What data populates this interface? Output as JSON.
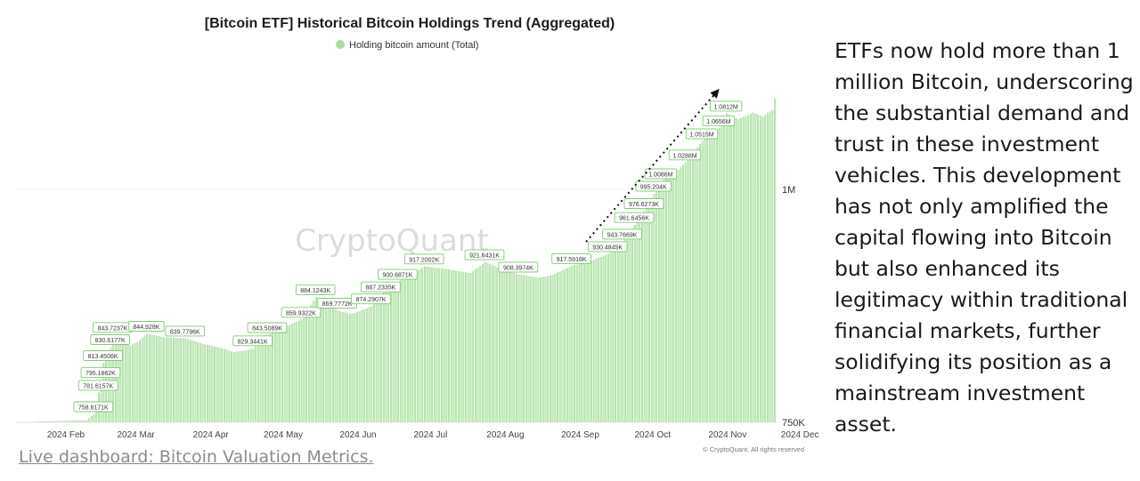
{
  "page": {
    "commentary": "ETFs now hold more than 1 million Bitcoin, underscoring the substantial demand and trust in these investment vehicles. This development has not only amplified the capital flowing into Bitcoin but also enhanced its legitimacy within traditional financial markets, further solidifying its position as a mainstream investment asset.",
    "link_text": "Live dashboard: Bitcoin Valuation Metrics."
  },
  "chart_data": {
    "type": "bar",
    "title": "[Bitcoin ETF] Historical Bitcoin Holdings Trend (Aggregated)",
    "legend": {
      "label": "Holding bitcoin amount (Total)",
      "position": "top-center",
      "color": "#a8dd9e"
    },
    "watermark": "CryptoQuant",
    "copyright": "© CryptoQuant. All rights reserved",
    "bar_color": "#c6ebbe",
    "bar_edge_color": "#96d68a",
    "arrow_annotation": true,
    "x_ticks": [
      "2024 Feb",
      "2024 Mar",
      "2024 Apr",
      "2024 May",
      "2024 Jun",
      "2024 Jul",
      "2024 Aug",
      "2024 Sep",
      "2024 Oct",
      "2024 Nov",
      "2024 Dec"
    ],
    "y_ticks": [
      {
        "value": 1000000,
        "label": "1M"
      },
      {
        "value": 750000,
        "label": "750K"
      }
    ],
    "ylim": [
      750000,
      1080000
    ],
    "x_start": "2024-02-01",
    "x_end": "2024-12-12",
    "data_labels": [
      {
        "date": "2024-03-04",
        "value": 758617,
        "label": "758.6171K"
      },
      {
        "date": "2024-03-06",
        "value": 781616,
        "label": "781.6157K"
      },
      {
        "date": "2024-03-07",
        "value": 795186,
        "label": "795.1862K"
      },
      {
        "date": "2024-03-08",
        "value": 813451,
        "label": "813.4506K"
      },
      {
        "date": "2024-03-11",
        "value": 830618,
        "label": "830.6177K"
      },
      {
        "date": "2024-03-12",
        "value": 843724,
        "label": "843.7237K"
      },
      {
        "date": "2024-03-26",
        "value": 844928,
        "label": "844.928K"
      },
      {
        "date": "2024-04-11",
        "value": 839780,
        "label": "839.7796K"
      },
      {
        "date": "2024-05-09",
        "value": 829344,
        "label": "829.3441K"
      },
      {
        "date": "2024-05-15",
        "value": 843509,
        "label": "843.5089K"
      },
      {
        "date": "2024-05-29",
        "value": 859932,
        "label": "859.9322K"
      },
      {
        "date": "2024-06-04",
        "value": 884124,
        "label": "884.1243K"
      },
      {
        "date": "2024-06-13",
        "value": 869777,
        "label": "869.7772K"
      },
      {
        "date": "2024-06-27",
        "value": 874291,
        "label": "874.2907K"
      },
      {
        "date": "2024-07-01",
        "value": 887234,
        "label": "887.2335K"
      },
      {
        "date": "2024-07-08",
        "value": 900687,
        "label": "900.6871K"
      },
      {
        "date": "2024-07-19",
        "value": 917200,
        "label": "917.2002K"
      },
      {
        "date": "2024-08-13",
        "value": 921643,
        "label": "921.6431K"
      },
      {
        "date": "2024-08-27",
        "value": 908397,
        "label": "908.3974K"
      },
      {
        "date": "2024-09-18",
        "value": 917592,
        "label": "917.5916K"
      },
      {
        "date": "2024-10-03",
        "value": 930485,
        "label": "930.4845K"
      },
      {
        "date": "2024-10-09",
        "value": 943767,
        "label": "943.7669K"
      },
      {
        "date": "2024-10-14",
        "value": 961646,
        "label": "961.6456K"
      },
      {
        "date": "2024-10-18",
        "value": 976627,
        "label": "976.6273K"
      },
      {
        "date": "2024-10-22",
        "value": 995204,
        "label": "995.204K"
      },
      {
        "date": "2024-10-25",
        "value": 1008600,
        "label": "1.0086M"
      },
      {
        "date": "2024-11-04",
        "value": 1028800,
        "label": "1.0288M"
      },
      {
        "date": "2024-11-11",
        "value": 1051500,
        "label": "1.0515M"
      },
      {
        "date": "2024-11-18",
        "value": 1065600,
        "label": "1.0656M"
      },
      {
        "date": "2024-11-21",
        "value": 1081200,
        "label": "1.0812M"
      }
    ],
    "daily_values": [
      {
        "date": "2024-02-01",
        "value": 750000
      },
      {
        "date": "2024-03-01",
        "value": 752000
      },
      {
        "date": "2024-03-04",
        "value": 758617
      },
      {
        "date": "2024-03-06",
        "value": 781616
      },
      {
        "date": "2024-03-07",
        "value": 795186
      },
      {
        "date": "2024-03-08",
        "value": 813451
      },
      {
        "date": "2024-03-11",
        "value": 830618
      },
      {
        "date": "2024-03-12",
        "value": 843724
      },
      {
        "date": "2024-03-15",
        "value": 838000
      },
      {
        "date": "2024-03-19",
        "value": 832000
      },
      {
        "date": "2024-03-22",
        "value": 836000
      },
      {
        "date": "2024-03-26",
        "value": 844928
      },
      {
        "date": "2024-04-02",
        "value": 841000
      },
      {
        "date": "2024-04-11",
        "value": 839780
      },
      {
        "date": "2024-04-18",
        "value": 834000
      },
      {
        "date": "2024-04-25",
        "value": 830000
      },
      {
        "date": "2024-05-01",
        "value": 825000
      },
      {
        "date": "2024-05-06",
        "value": 827000
      },
      {
        "date": "2024-05-09",
        "value": 829344
      },
      {
        "date": "2024-05-15",
        "value": 843509
      },
      {
        "date": "2024-05-22",
        "value": 852000
      },
      {
        "date": "2024-05-29",
        "value": 859932
      },
      {
        "date": "2024-06-04",
        "value": 884124
      },
      {
        "date": "2024-06-07",
        "value": 880000
      },
      {
        "date": "2024-06-13",
        "value": 869777
      },
      {
        "date": "2024-06-18",
        "value": 866000
      },
      {
        "date": "2024-06-21",
        "value": 868000
      },
      {
        "date": "2024-06-27",
        "value": 874291
      },
      {
        "date": "2024-07-01",
        "value": 887234
      },
      {
        "date": "2024-07-08",
        "value": 900687
      },
      {
        "date": "2024-07-12",
        "value": 906000
      },
      {
        "date": "2024-07-19",
        "value": 917200
      },
      {
        "date": "2024-07-26",
        "value": 915000
      },
      {
        "date": "2024-08-02",
        "value": 912000
      },
      {
        "date": "2024-08-07",
        "value": 910000
      },
      {
        "date": "2024-08-13",
        "value": 921643
      },
      {
        "date": "2024-08-20",
        "value": 914000
      },
      {
        "date": "2024-08-27",
        "value": 908397
      },
      {
        "date": "2024-09-04",
        "value": 905000
      },
      {
        "date": "2024-09-10",
        "value": 908000
      },
      {
        "date": "2024-09-18",
        "value": 917592
      },
      {
        "date": "2024-09-25",
        "value": 922000
      },
      {
        "date": "2024-10-03",
        "value": 930485
      },
      {
        "date": "2024-10-09",
        "value": 943767
      },
      {
        "date": "2024-10-14",
        "value": 961646
      },
      {
        "date": "2024-10-18",
        "value": 976627
      },
      {
        "date": "2024-10-22",
        "value": 995204
      },
      {
        "date": "2024-10-25",
        "value": 1008600
      },
      {
        "date": "2024-10-30",
        "value": 1015000
      },
      {
        "date": "2024-11-04",
        "value": 1028800
      },
      {
        "date": "2024-11-11",
        "value": 1051500
      },
      {
        "date": "2024-11-18",
        "value": 1065600
      },
      {
        "date": "2024-11-21",
        "value": 1081200
      },
      {
        "date": "2024-11-26",
        "value": 1075000
      },
      {
        "date": "2024-12-02",
        "value": 1082000
      },
      {
        "date": "2024-12-06",
        "value": 1078000
      },
      {
        "date": "2024-12-10",
        "value": 1085000
      },
      {
        "date": "2024-12-12",
        "value": 1110000
      }
    ]
  }
}
